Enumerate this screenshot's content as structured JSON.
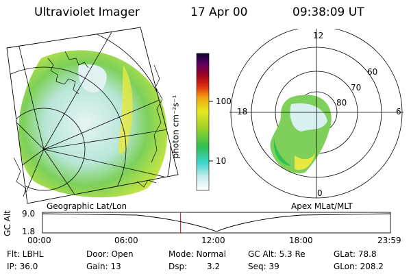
{
  "header": {
    "title": "Ultraviolet Imager",
    "date": "17 Apr 00",
    "time": "09:38:09 UT"
  },
  "colorbar": {
    "label": "photon cm⁻²s⁻¹",
    "ticks": [
      "100",
      "10"
    ]
  },
  "panels": {
    "left_label": "Geographic Lat/Lon",
    "right_label": "Apex MLat/MLT"
  },
  "polar": {
    "mlt_labels": [
      "12",
      "18",
      "6",
      "0"
    ],
    "lat_labels": [
      "60",
      "70",
      "80"
    ]
  },
  "altitude_plot": {
    "y_axis_label": "GC Alt",
    "y_ticks": [
      "9.0",
      "1.8"
    ],
    "x_ticks": [
      "00:00",
      "06:00",
      "12:00",
      "18:00",
      "23:59"
    ],
    "current_time_fraction": 0.397
  },
  "info": {
    "filter": "Flt: LBHL",
    "ip": "IP: 36.0",
    "door": "Door: Open",
    "gain": "Gain: 13",
    "mode": "Mode: Normal",
    "dsp_label": "Dsp:",
    "dsp_value": "3.2",
    "gc_alt": "GC Alt: 5.3 Re",
    "seq": "Seq: 39",
    "glat": "GLat: 78.8",
    "glon": "GLon: 208.2"
  },
  "colors": {
    "marker": "#d40000",
    "aurora_low": "#d9f0f0",
    "aurora_mid": "#8fd64a",
    "aurora_high": "#e8e840"
  }
}
